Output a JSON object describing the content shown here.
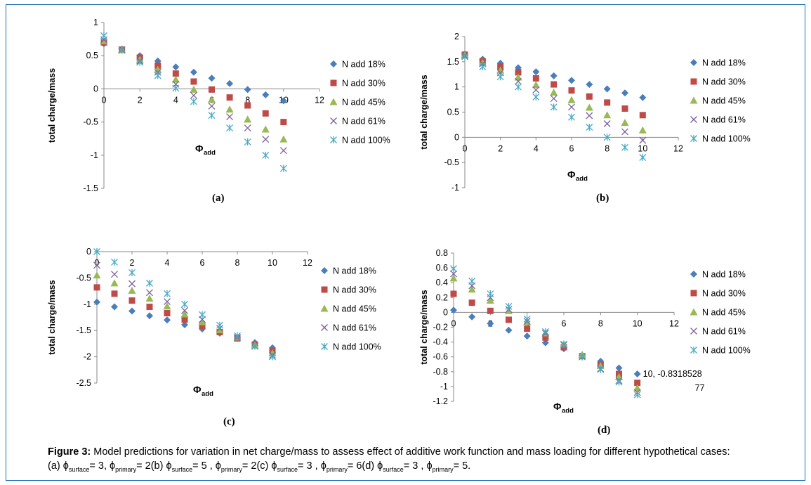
{
  "figure": {
    "caption_label": "Figure 3:",
    "caption_text": "Model predictions for variation in net charge/mass to assess effect of additive work function and mass loading for different hypothetical cases:",
    "caption_line2": [
      {
        "pre": "(a) ",
        "sym": "ϕ",
        "sub": "surface",
        "post": "= 3, "
      },
      {
        "pre": "",
        "sym": "ϕ",
        "sub": "primary",
        "post": "= 2(b) "
      },
      {
        "pre": "",
        "sym": "ϕ",
        "sub": "surface",
        "post": "= 5 , "
      },
      {
        "pre": "",
        "sym": "ϕ",
        "sub": "primary",
        "post": "= 2(c) "
      },
      {
        "pre": "",
        "sym": "ϕ",
        "sub": "surface",
        "post": "= 3 , "
      },
      {
        "pre": "",
        "sym": "ϕ",
        "sub": "primary",
        "post": "= 6(d) "
      },
      {
        "pre": "",
        "sym": "ϕ",
        "sub": "surface",
        "post": "= 3 , "
      },
      {
        "pre": "",
        "sym": "ϕ",
        "sub": "primary",
        "post": "= 5."
      }
    ]
  },
  "series_style": [
    {
      "name": "N add 18%",
      "color": "#4a7ebb",
      "marker": "diamond"
    },
    {
      "name": "N add 30%",
      "color": "#be4b48",
      "marker": "square"
    },
    {
      "name": "N add 45%",
      "color": "#98b954",
      "marker": "triangle"
    },
    {
      "name": "N add 61%",
      "color": "#7d60a0",
      "marker": "x"
    },
    {
      "name": "N add 100%",
      "color": "#46aac5",
      "marker": "star"
    }
  ],
  "chart_data": [
    {
      "panel": "(a)",
      "type": "scatter",
      "ylabel": "total charge/mass",
      "xlabel_main": "Φ",
      "xlabel_sub": "add",
      "xlim": [
        0,
        12
      ],
      "ylim": [
        -1.5,
        1
      ],
      "xticks": [
        0,
        2,
        4,
        6,
        8,
        10,
        12
      ],
      "yticks": [
        1,
        0.5,
        0,
        -0.5,
        -1,
        -1.5
      ],
      "x": [
        0,
        1,
        2,
        3,
        4,
        5,
        6,
        7,
        8,
        9,
        10
      ],
      "series": [
        {
          "name": "N add 18%",
          "values": [
            0.68,
            0.6,
            0.5,
            0.42,
            0.33,
            0.25,
            0.16,
            0.08,
            -0.01,
            -0.09,
            -0.18
          ]
        },
        {
          "name": "N add 30%",
          "values": [
            0.7,
            0.59,
            0.47,
            0.35,
            0.23,
            0.11,
            -0.01,
            -0.13,
            -0.25,
            -0.37,
            -0.5
          ]
        },
        {
          "name": "N add 45%",
          "values": [
            0.72,
            0.59,
            0.44,
            0.29,
            0.14,
            -0.01,
            -0.16,
            -0.31,
            -0.46,
            -0.61,
            -0.76
          ]
        },
        {
          "name": "N add 61%",
          "values": [
            0.74,
            0.59,
            0.42,
            0.25,
            0.07,
            -0.1,
            -0.26,
            -0.42,
            -0.59,
            -0.76,
            -0.93
          ]
        },
        {
          "name": "N add 100%",
          "values": [
            0.8,
            0.58,
            0.4,
            0.2,
            0.01,
            -0.19,
            -0.4,
            -0.59,
            -0.8,
            -1.0,
            -1.2
          ]
        }
      ]
    },
    {
      "panel": "(b)",
      "type": "scatter",
      "ylabel": "total charge/mass",
      "xlabel_main": "Φ",
      "xlabel_sub": "add",
      "xlim": [
        0,
        12
      ],
      "ylim": [
        -1,
        2
      ],
      "xticks": [
        0,
        2,
        4,
        6,
        8,
        10,
        12
      ],
      "yticks": [
        2,
        1.5,
        1,
        0.5,
        0,
        -0.5,
        -1
      ],
      "x": [
        0,
        1,
        2,
        3,
        4,
        5,
        6,
        7,
        8,
        9,
        10
      ],
      "series": [
        {
          "name": "N add 18%",
          "values": [
            1.65,
            1.55,
            1.47,
            1.38,
            1.3,
            1.22,
            1.13,
            1.05,
            0.96,
            0.88,
            0.79
          ]
        },
        {
          "name": "N add 30%",
          "values": [
            1.64,
            1.51,
            1.4,
            1.29,
            1.17,
            1.05,
            0.93,
            0.81,
            0.69,
            0.57,
            0.44
          ]
        },
        {
          "name": "N add 45%",
          "values": [
            1.63,
            1.48,
            1.33,
            1.19,
            1.04,
            0.89,
            0.74,
            0.59,
            0.44,
            0.29,
            0.14
          ]
        },
        {
          "name": "N add 61%",
          "values": [
            1.62,
            1.46,
            1.28,
            1.11,
            0.94,
            0.77,
            0.6,
            0.43,
            0.27,
            0.11,
            -0.06
          ]
        },
        {
          "name": "N add 100%",
          "values": [
            1.6,
            1.4,
            1.2,
            1.0,
            0.8,
            0.6,
            0.4,
            0.2,
            0.0,
            -0.2,
            -0.4
          ]
        }
      ]
    },
    {
      "panel": "(c)",
      "type": "scatter",
      "ylabel": "total charge/mass",
      "xlabel_main": "Φ",
      "xlabel_sub": "add",
      "xlim": [
        0,
        12
      ],
      "ylim": [
        -2.5,
        0
      ],
      "xticks": [
        0,
        2,
        4,
        6,
        8,
        10,
        12
      ],
      "yticks": [
        0,
        -0.5,
        -1,
        -1.5,
        -2,
        -2.5
      ],
      "x": [
        0,
        1,
        2,
        3,
        4,
        5,
        6,
        7,
        8,
        9,
        10
      ],
      "series": [
        {
          "name": "N add 18%",
          "values": [
            -0.96,
            -1.05,
            -1.13,
            -1.22,
            -1.3,
            -1.39,
            -1.47,
            -1.55,
            -1.64,
            -1.73,
            -1.83
          ]
        },
        {
          "name": "N add 30%",
          "values": [
            -0.68,
            -0.8,
            -0.93,
            -1.05,
            -1.17,
            -1.29,
            -1.41,
            -1.53,
            -1.65,
            -1.77,
            -1.89
          ]
        },
        {
          "name": "N add 45%",
          "values": [
            -0.45,
            -0.6,
            -0.74,
            -0.89,
            -1.04,
            -1.19,
            -1.34,
            -1.49,
            -1.63,
            -1.78,
            -1.93
          ]
        },
        {
          "name": "N add 61%",
          "values": [
            -0.26,
            -0.43,
            -0.61,
            -0.78,
            -0.95,
            -1.12,
            -1.29,
            -1.46,
            -1.63,
            -1.8,
            -1.97
          ]
        },
        {
          "name": "N add 100%",
          "values": [
            0.0,
            -0.2,
            -0.4,
            -0.6,
            -0.8,
            -1.0,
            -1.2,
            -1.4,
            -1.6,
            -1.8,
            -2.0
          ]
        }
      ]
    },
    {
      "panel": "(d)",
      "type": "scatter",
      "ylabel": "total charge/mass",
      "xlabel_main": "Φ",
      "xlabel_sub": "add",
      "xlim": [
        0,
        12
      ],
      "ylim": [
        -1.2,
        0.8
      ],
      "xticks": [
        0,
        2,
        4,
        6,
        8,
        10,
        12
      ],
      "yticks": [
        0.8,
        0.6,
        0.4,
        0.2,
        0,
        -0.2,
        -0.4,
        -0.6,
        -0.8,
        -1,
        -1.2
      ],
      "annotation": {
        "line1": "10, -0.8318528",
        "line2": "77"
      },
      "x": [
        0,
        1,
        2,
        3,
        4,
        5,
        6,
        7,
        8,
        9,
        10
      ],
      "series": [
        {
          "name": "N add 18%",
          "values": [
            0.03,
            -0.06,
            -0.15,
            -0.24,
            -0.32,
            -0.41,
            -0.49,
            -0.58,
            -0.66,
            -0.75,
            -0.83
          ]
        },
        {
          "name": "N add 30%",
          "values": [
            0.25,
            0.13,
            0.02,
            -0.1,
            -0.22,
            -0.34,
            -0.47,
            -0.59,
            -0.71,
            -0.83,
            -0.95
          ]
        },
        {
          "name": "N add 45%",
          "values": [
            0.46,
            0.31,
            0.16,
            0.02,
            -0.13,
            -0.28,
            -0.43,
            -0.57,
            -0.72,
            -0.87,
            -1.02
          ]
        },
        {
          "name": "N add 61%",
          "values": [
            0.52,
            0.36,
            0.2,
            0.04,
            -0.12,
            -0.28,
            -0.44,
            -0.6,
            -0.76,
            -0.92,
            -1.08
          ]
        },
        {
          "name": "N add 100%",
          "values": [
            0.59,
            0.42,
            0.25,
            0.08,
            -0.09,
            -0.26,
            -0.43,
            -0.6,
            -0.77,
            -0.94,
            -1.11
          ]
        }
      ]
    }
  ]
}
